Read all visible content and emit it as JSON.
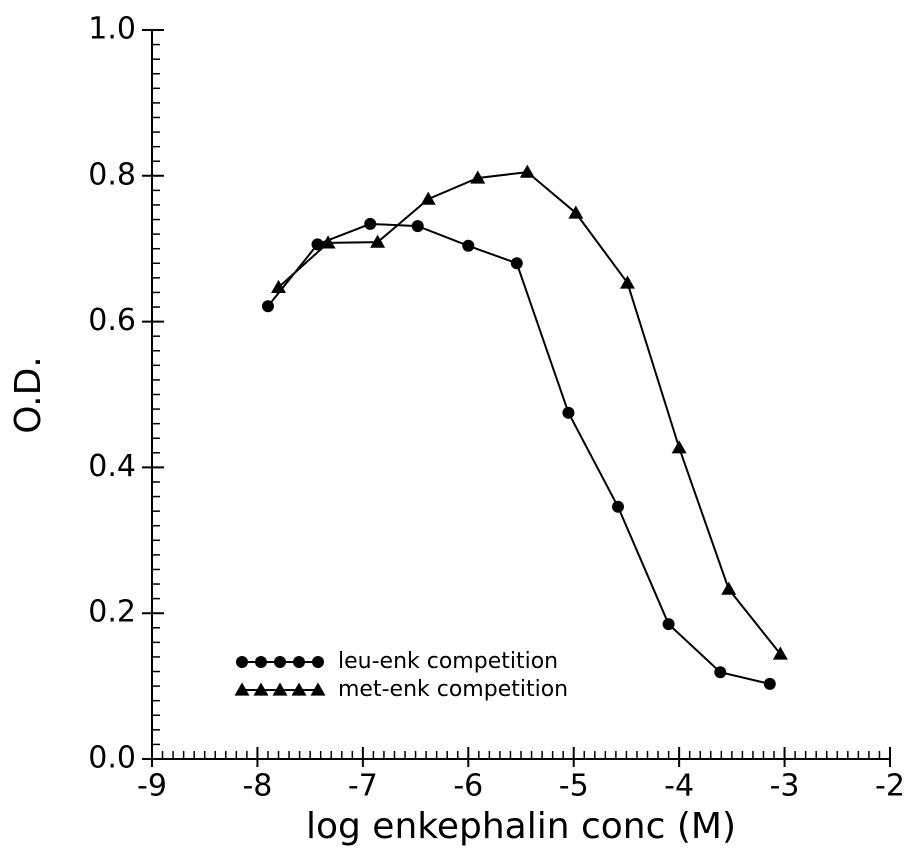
{
  "chart_data": {
    "type": "line",
    "xlabel": "log enkephalin conc (M)",
    "ylabel": "O.D.",
    "xlim": [
      -9,
      -2
    ],
    "xticks": [
      -9,
      -8,
      -7,
      -6,
      -5,
      -4,
      -3,
      -2
    ],
    "ylim": [
      0,
      1
    ],
    "yticks": [
      {
        "value": 0,
        "label": "0.0"
      },
      0.2,
      0.4,
      0.6,
      0.8,
      {
        "value": 1,
        "label": "1.0"
      }
    ],
    "x_minor_step": 0.1,
    "y_minor_step": 0.02,
    "legend": "lower left",
    "series": [
      {
        "name": "leu-enk competition",
        "color": "#000000",
        "marker": "circle",
        "x": [
          -7.9,
          -7.43,
          -6.93,
          -6.48,
          -6.0,
          -5.54,
          -5.05,
          -4.58,
          -4.1,
          -3.61,
          -3.14
        ],
        "values": [
          0.621,
          0.706,
          0.734,
          0.731,
          0.704,
          0.68,
          0.475,
          0.346,
          0.185,
          0.119,
          0.103
        ]
      },
      {
        "name": "met-enk competition",
        "color": "#000000",
        "marker": "triangle",
        "x": [
          -7.8,
          -7.33,
          -6.86,
          -6.38,
          -5.91,
          -5.44,
          -4.98,
          -4.49,
          -4.0,
          -3.53,
          -3.04
        ],
        "values": [
          0.647,
          0.708,
          0.709,
          0.768,
          0.797,
          0.805,
          0.749,
          0.653,
          0.427,
          0.233,
          0.144
        ]
      }
    ]
  }
}
